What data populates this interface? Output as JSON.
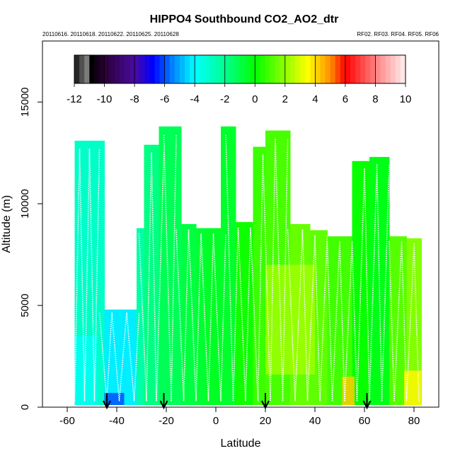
{
  "chart_data": {
    "type": "heatmap",
    "title": "HIPPO4 Southbound CO2_AO2_dtr",
    "subtitle_left": "20110616. 20110618. 20110622. 20110625. 20110628",
    "subtitle_right": "RF02. RF03. RF04. RF05. RF06",
    "xlabel": "Latitude",
    "ylabel": "Altitude (m)",
    "xlim": [
      -70,
      90
    ],
    "ylim": [
      0,
      18000
    ],
    "x_ticks": [
      -60,
      -40,
      -20,
      0,
      20,
      40,
      60,
      80
    ],
    "y_ticks": [
      0,
      5000,
      10000,
      15000
    ],
    "colorbar": {
      "range": [
        -12,
        10
      ],
      "ticks": [
        -12,
        -10,
        -8,
        -6,
        -4,
        -2,
        0,
        2,
        4,
        6,
        8,
        10
      ],
      "stops": [
        {
          "v": -12,
          "c": "#111111"
        },
        {
          "v": -11,
          "c": "#909090"
        },
        {
          "v": -10.9,
          "c": "#000000"
        },
        {
          "v": -10,
          "c": "#2a0035"
        },
        {
          "v": -8,
          "c": "#4a0aa0"
        },
        {
          "v": -6.8,
          "c": "#0000ff"
        },
        {
          "v": -5.5,
          "c": "#0080ff"
        },
        {
          "v": -4,
          "c": "#00ffff"
        },
        {
          "v": -2,
          "c": "#00ff90"
        },
        {
          "v": 0,
          "c": "#00ff00"
        },
        {
          "v": 2,
          "c": "#90ff00"
        },
        {
          "v": 3.5,
          "c": "#ffff00"
        },
        {
          "v": 5,
          "c": "#ff9000"
        },
        {
          "v": 6,
          "c": "#ff0000"
        },
        {
          "v": 8,
          "c": "#ff8080"
        },
        {
          "v": 10,
          "c": "#fff0f0"
        }
      ]
    },
    "flight_columns": [
      {
        "lat0": -57,
        "lat1": -45,
        "alt": 13100,
        "value": -3.0
      },
      {
        "lat0": -45,
        "lat1": -32,
        "alt": 4800,
        "value": -4.2
      },
      {
        "lat0": -32,
        "lat1": -29,
        "alt": 8800,
        "value": -2.4
      },
      {
        "lat0": -29,
        "lat1": -23,
        "alt": 12900,
        "value": -1.8
      },
      {
        "lat0": -23,
        "lat1": -14,
        "alt": 13800,
        "value": -1.2
      },
      {
        "lat0": -14,
        "lat1": -8,
        "alt": 9000,
        "value": -0.9
      },
      {
        "lat0": -8,
        "lat1": -4,
        "alt": 8800,
        "value": -0.7
      },
      {
        "lat0": -4,
        "lat1": 2,
        "alt": 8800,
        "value": -0.5
      },
      {
        "lat0": 2,
        "lat1": 8,
        "alt": 13800,
        "value": -0.6
      },
      {
        "lat0": 8,
        "lat1": 15,
        "alt": 9100,
        "value": 0.2
      },
      {
        "lat0": 15,
        "lat1": 20,
        "alt": 12800,
        "value": 0.8
      },
      {
        "lat0": 20,
        "lat1": 30,
        "alt": 13600,
        "value": 1.0
      },
      {
        "lat0": 30,
        "lat1": 38,
        "alt": 9000,
        "value": 1.4
      },
      {
        "lat0": 38,
        "lat1": 45,
        "alt": 8700,
        "value": 1.3
      },
      {
        "lat0": 45,
        "lat1": 55,
        "alt": 8400,
        "value": 0.9
      },
      {
        "lat0": 55,
        "lat1": 62,
        "alt": 12100,
        "value": 0.1
      },
      {
        "lat0": 62,
        "lat1": 70,
        "alt": 12300,
        "value": -0.3
      },
      {
        "lat0": 70,
        "lat1": 77,
        "alt": 8400,
        "value": 1.2
      },
      {
        "lat0": 77,
        "lat1": 83,
        "alt": 8300,
        "value": 1.8
      }
    ],
    "features": [
      {
        "lat0": -45,
        "lat1": -37,
        "alt0": 0,
        "alt1": 700,
        "value": -6.0
      },
      {
        "lat0": 51,
        "lat1": 56,
        "alt0": 0,
        "alt1": 1500,
        "value": 4.2
      },
      {
        "lat0": 76,
        "lat1": 83,
        "alt0": 0,
        "alt1": 1800,
        "value": 3.6
      },
      {
        "lat0": 20,
        "lat1": 40,
        "alt0": 1500,
        "alt1": 7000,
        "value": 2.2
      },
      {
        "lat0": -57,
        "lat1": -48,
        "alt0": 0,
        "alt1": 3500,
        "value": -3.8
      }
    ],
    "profile_latitudes": [
      -57,
      -55,
      -53,
      -51,
      -49,
      -47,
      -44,
      -42,
      -39,
      -36,
      -33,
      -31,
      -28,
      -26,
      -24,
      -21,
      -18,
      -16,
      -13,
      -11,
      -8,
      -6,
      -3,
      -1,
      2,
      4,
      7,
      9,
      12,
      14,
      17,
      19,
      22,
      24,
      27,
      29,
      32,
      35,
      37,
      40,
      42,
      45,
      47,
      50,
      52,
      55,
      57,
      60,
      62,
      65,
      67,
      70,
      72,
      75,
      77,
      80,
      82
    ],
    "arrow_latitudes": [
      -44,
      -21,
      20,
      61
    ]
  }
}
